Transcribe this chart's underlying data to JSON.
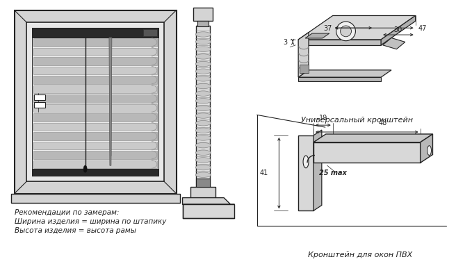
{
  "background_color": "#ffffff",
  "fig_width": 6.56,
  "fig_height": 3.8,
  "dpi": 100,
  "text_rekom": "Рекомендации по замерам:",
  "text_width": "Ширина изделия = ширина по штапику",
  "text_height": "Высота изделия = высота рамы",
  "label_universal": "Универсальный кронштейн",
  "label_pvh": "Кронштейн для окон ПВХ",
  "line_color": "#222222",
  "gray_light": "#d4d4d4",
  "gray_mid": "#aaaaaa",
  "gray_dark": "#888888",
  "black": "#111111",
  "white": "#ffffff"
}
